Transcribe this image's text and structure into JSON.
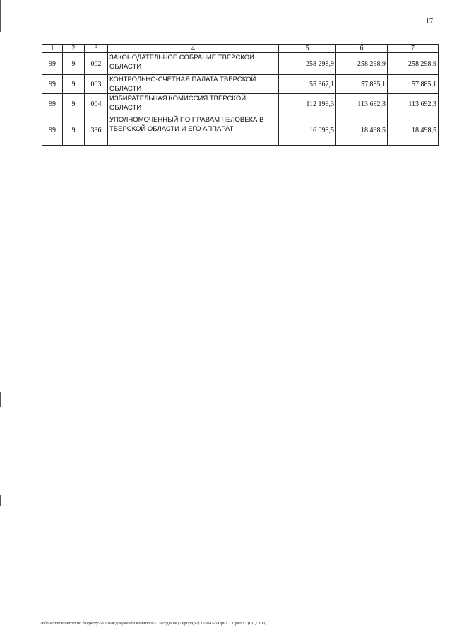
{
  "page_number": "17",
  "table": {
    "headers": [
      "1",
      "2",
      "3",
      "4",
      "5",
      "6",
      "7"
    ],
    "rows": [
      [
        "99",
        "9",
        "002",
        "ЗАКОНОДАТЕЛЬНОЕ СОБРАНИЕ ТВЕРСКОЙ ОБЛАСТИ",
        "258 298,9",
        "258 298,9",
        "258 298,9"
      ],
      [
        "99",
        "9",
        "003",
        "КОНТРОЛЬНО-СЧЕТНАЯ ПАЛАТА ТВЕРСКОЙ ОБЛАСТИ",
        "55 367,1",
        "57 885,1",
        "57 885,1"
      ],
      [
        "99",
        "9",
        "004",
        "ИЗБИРАТЕЛЬНАЯ КОМИССИЯ ТВЕРСКОЙ ОБЛАСТИ",
        "112 199,3",
        "113 692,3",
        "113 692,3"
      ],
      [
        "99",
        "9",
        "336",
        "УПОЛНОМОЧЕННЫЙ ПО ПРАВАМ ЧЕЛОВЕКА В ТВЕРСКОЙ ОБЛАСТИ И ЕГО АППАРАТ",
        "16 098,5",
        "18 498,5",
        "18 498,5"
      ]
    ]
  },
  "footer": "\\\\File-server\\комитет по бюджету\\5 Созыв\\документы комитета\\57 заседание (7)\\pr\\pr(57) 1550-П-5\\Прил 7 Прил 13 (ГП,ППП)"
}
